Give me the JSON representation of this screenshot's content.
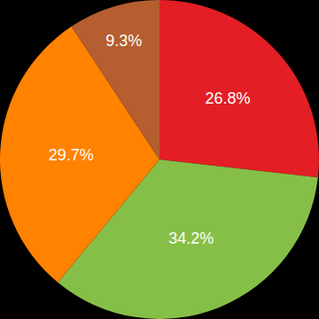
{
  "chart_data": {
    "type": "pie",
    "values": [
      26.8,
      34.2,
      29.7,
      9.3
    ],
    "value_labels": [
      "26.8%",
      "34.2%",
      "29.7%",
      "9.3%"
    ],
    "colors": [
      "#e31e24",
      "#86bf47",
      "#ff8200",
      "#b55e30"
    ],
    "data_labels": true
  }
}
